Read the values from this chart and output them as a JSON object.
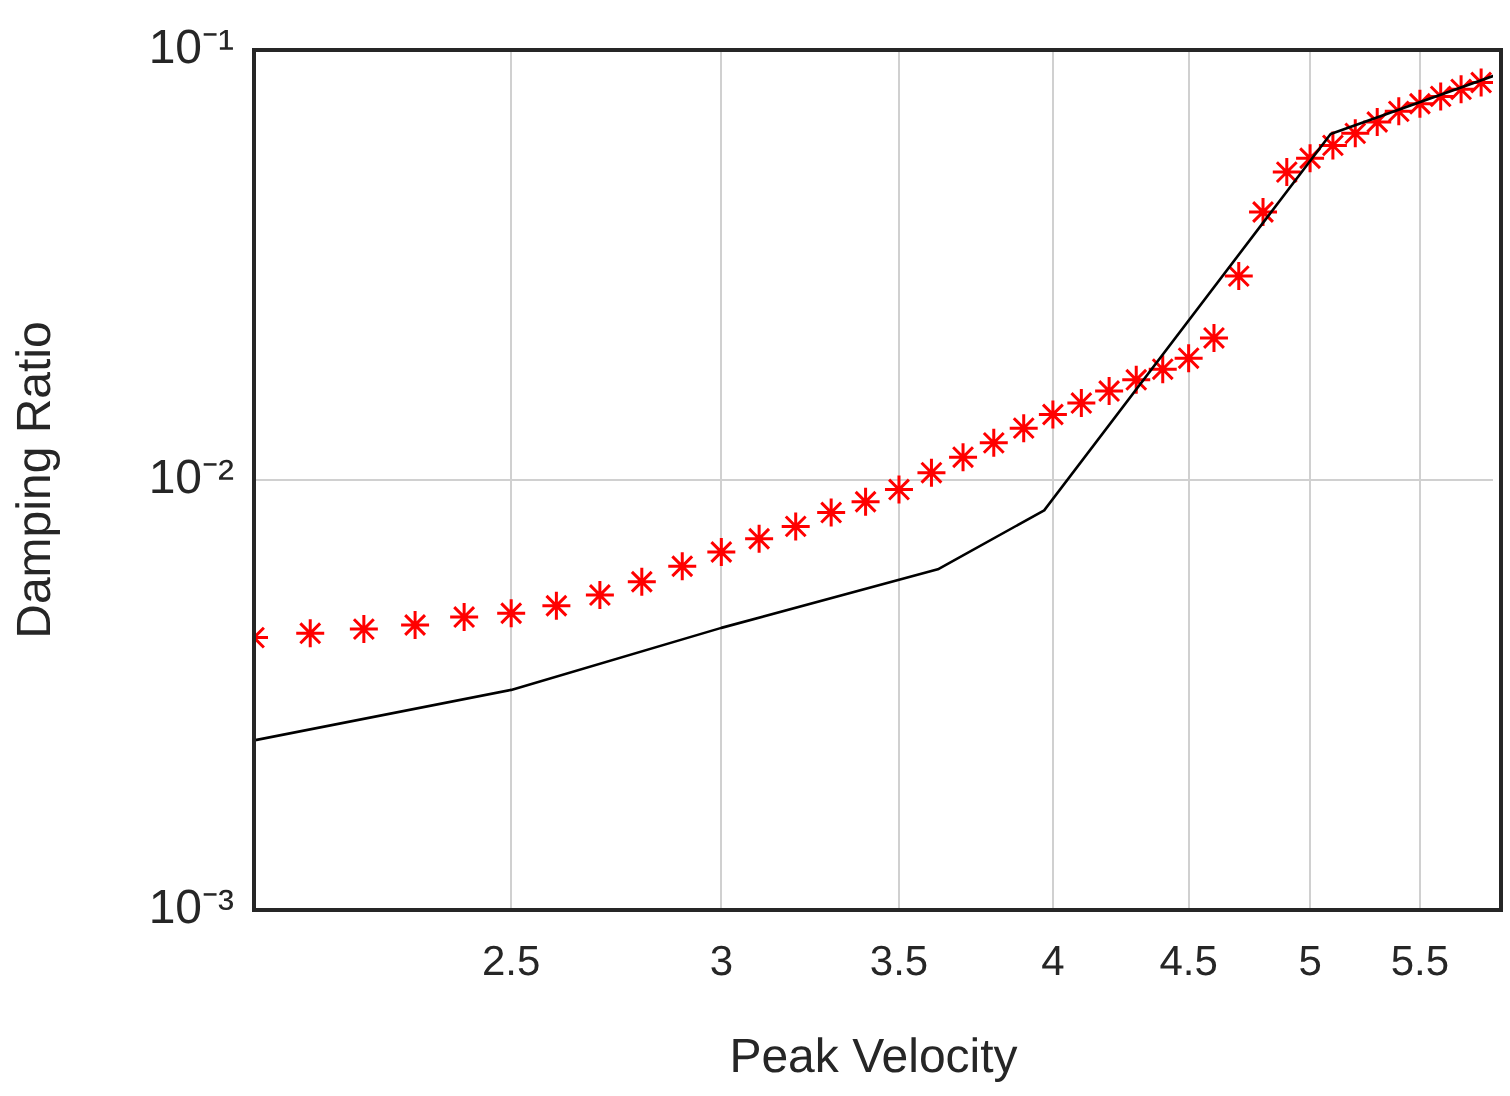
{
  "chart_data": {
    "type": "line",
    "xlabel": "Peak Velocity",
    "ylabel": "Damping Ratio",
    "log": "xy",
    "grid": true,
    "legend": false,
    "xlim": [
      2,
      5.86
    ],
    "xticks": [
      2.5,
      3,
      3.5,
      4,
      4.5,
      5,
      5.5
    ],
    "ylim": [
      0.001,
      0.1
    ],
    "yticks": [
      {
        "value": 0.001,
        "label": "10⁻³"
      },
      {
        "value": 0.01,
        "label": "10⁻²"
      },
      {
        "value": 0.1,
        "label": "10⁻¹"
      }
    ],
    "series": [
      {
        "color": "#000000",
        "marker": "none",
        "line_style": "solid",
        "x": [
          2.0,
          2.5,
          3.0,
          3.62,
          3.97,
          5.09,
          5.86
        ],
        "values": [
          0.00248,
          0.00325,
          0.00453,
          0.0062,
          0.0085,
          0.0638,
          0.087
        ]
      },
      {
        "type": "scatter",
        "color": "#ff0000",
        "marker": "cross",
        "x": [
          2.0,
          2.1,
          2.2,
          2.3,
          2.4,
          2.5,
          2.6,
          2.7,
          2.8,
          2.9,
          3.0,
          3.1,
          3.2,
          3.3,
          3.4,
          3.5,
          3.6,
          3.7,
          3.8,
          3.9,
          4.0,
          4.1,
          4.2,
          4.3,
          4.4,
          4.5,
          4.6,
          4.7,
          4.8,
          4.9,
          5.0,
          5.1,
          5.2,
          5.3,
          5.4,
          5.5,
          5.6,
          5.7,
          5.8
        ],
        "values": [
          0.0043,
          0.0044,
          0.0045,
          0.0046,
          0.0048,
          0.0049,
          0.0051,
          0.0054,
          0.0058,
          0.0063,
          0.0068,
          0.0073,
          0.0078,
          0.0084,
          0.0089,
          0.0095,
          0.0104,
          0.0113,
          0.0122,
          0.0132,
          0.0142,
          0.0151,
          0.0161,
          0.0171,
          0.0181,
          0.0192,
          0.0214,
          0.0298,
          0.042,
          0.052,
          0.056,
          0.06,
          0.064,
          0.068,
          0.072,
          0.075,
          0.078,
          0.081,
          0.084
        ]
      }
    ]
  }
}
